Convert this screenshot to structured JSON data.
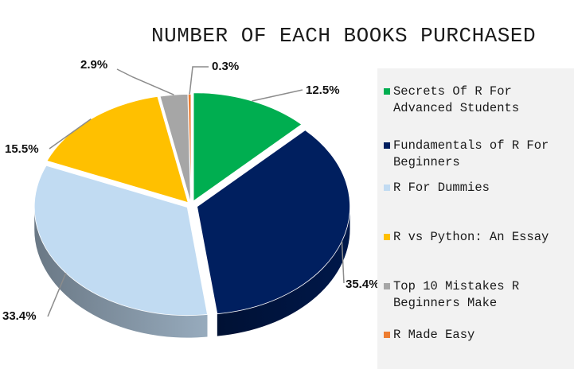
{
  "chart_data": {
    "type": "pie",
    "title": "NUMBER OF EACH BOOKS PURCHASED",
    "categories": [
      "Secrets Of R For Advanced Students",
      "Fundamentals of R For Beginners",
      "R For Dummies",
      "R vs Python: An Essay",
      "Top 10 Mistakes R Beginners Make",
      "R Made Easy"
    ],
    "values": [
      12.5,
      35.4,
      33.4,
      15.5,
      2.9,
      0.3
    ],
    "labels": [
      "12.5%",
      "35.4%",
      "33.4%",
      "15.5%",
      "2.9%",
      "0.3%"
    ],
    "colors": [
      "#00ae50",
      "#001f5f",
      "#c1dbf2",
      "#ffc000",
      "#a6a6a6",
      "#ed7d31"
    ],
    "legend_position": "right",
    "style": "3d-exploded"
  }
}
